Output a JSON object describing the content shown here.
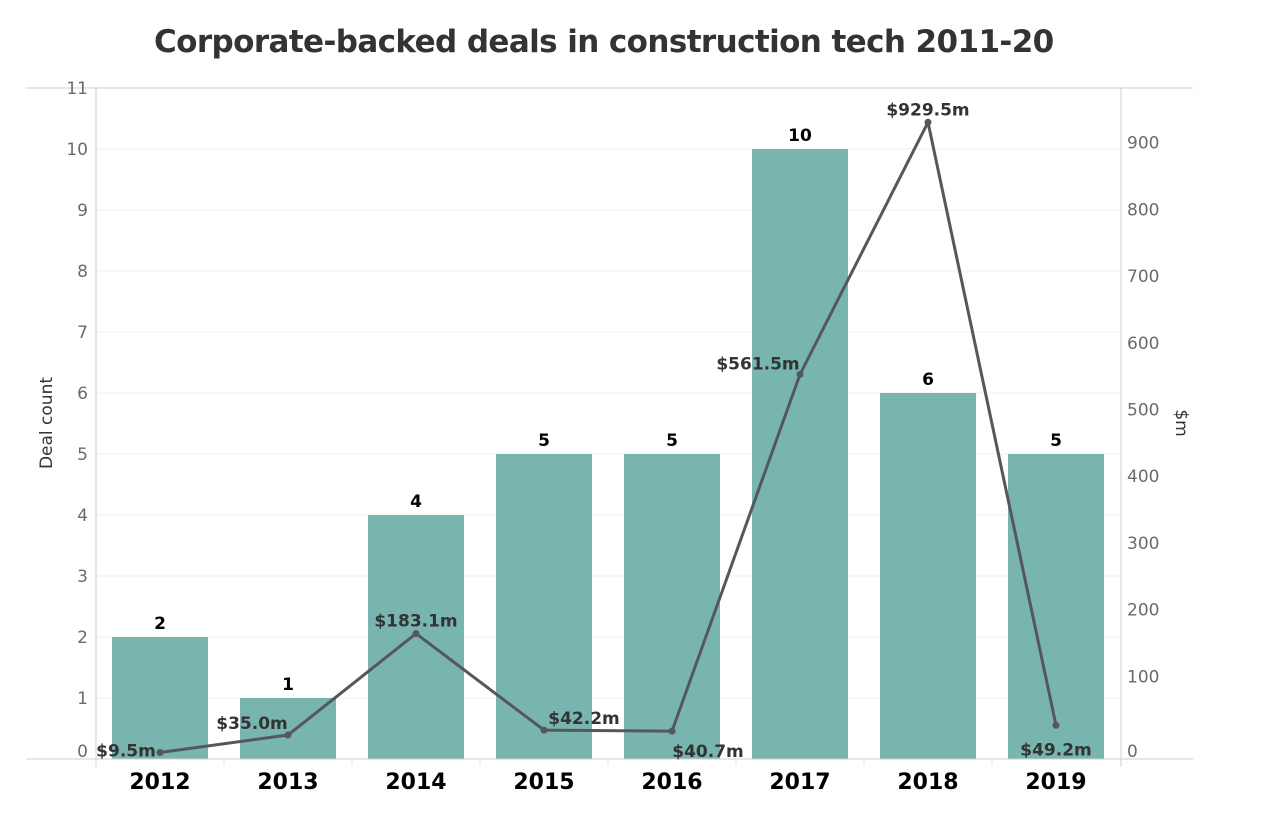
{
  "chart_data": {
    "type": "bar",
    "title": "Corporate-backed deals in construction tech 2011-20",
    "categories": [
      "2012",
      "2013",
      "2014",
      "2015",
      "2016",
      "2017",
      "2018",
      "2019"
    ],
    "series": [
      {
        "name": "Deal count",
        "type": "bar",
        "axis": "left",
        "values": [
          2,
          1,
          4,
          5,
          5,
          10,
          6,
          5
        ],
        "labels": [
          "2",
          "1",
          "4",
          "5",
          "5",
          "10",
          "6",
          "5"
        ],
        "color": "#78b5af"
      },
      {
        "name": "$m",
        "type": "line",
        "axis": "right",
        "values": [
          9.5,
          35.0,
          183.1,
          42.2,
          40.7,
          561.5,
          929.5,
          49.2
        ],
        "labels": [
          "$9.5m",
          "$35.0m",
          "$183.1m",
          "$42.2m",
          "$40.7m",
          "$561.5m",
          "$929.5m",
          "$49.2m"
        ],
        "color": "#55575c"
      }
    ],
    "ylabel": "Deal count",
    "ylabel_right": "$m",
    "ylim": [
      0,
      11
    ],
    "ylim_right": [
      0,
      960
    ],
    "yticks": [
      0,
      1,
      2,
      3,
      4,
      5,
      6,
      7,
      8,
      9,
      10,
      11
    ],
    "yticks_right": [
      0,
      100,
      200,
      300,
      400,
      500,
      600,
      700,
      800,
      900
    ],
    "grid": true,
    "legend": "none"
  }
}
